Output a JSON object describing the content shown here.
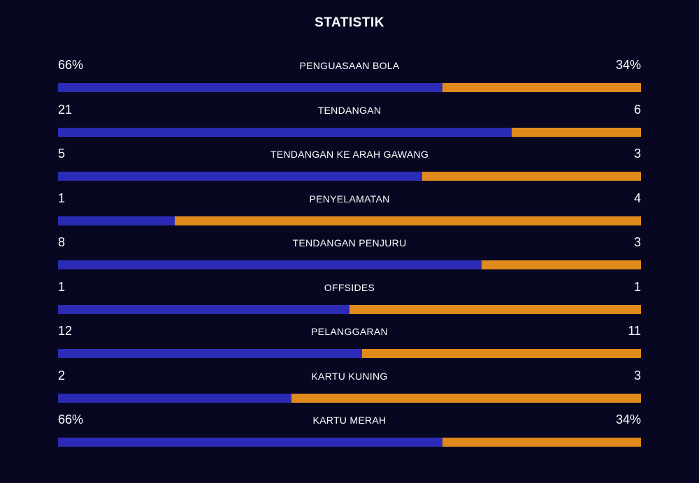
{
  "title": "STATISTIK",
  "colors": {
    "background": "#070722",
    "home": "#2b2bb5",
    "away": "#e08a1c",
    "text": "#ffffff"
  },
  "stats": [
    {
      "label": "PENGUASAAN BOLA",
      "home": "66%",
      "away": "34%",
      "home_share": 0.66
    },
    {
      "label": "TENDANGAN",
      "home": "21",
      "away": "6",
      "home_share": 0.778
    },
    {
      "label": "TENDANGAN KE ARAH GAWANG",
      "home": "5",
      "away": "3",
      "home_share": 0.625
    },
    {
      "label": "PENYELAMATAN",
      "home": "1",
      "away": "4",
      "home_share": 0.2
    },
    {
      "label": "TENDANGAN PENJURU",
      "home": "8",
      "away": "3",
      "home_share": 0.727
    },
    {
      "label": "OFFSIDES",
      "home": "1",
      "away": "1",
      "home_share": 0.5
    },
    {
      "label": "PELANGGARAN",
      "home": "12",
      "away": "11",
      "home_share": 0.522
    },
    {
      "label": "KARTU KUNING",
      "home": "2",
      "away": "3",
      "home_share": 0.4
    },
    {
      "label": "KARTU MERAH",
      "home": "66%",
      "away": "34%",
      "home_share": 0.66
    }
  ]
}
